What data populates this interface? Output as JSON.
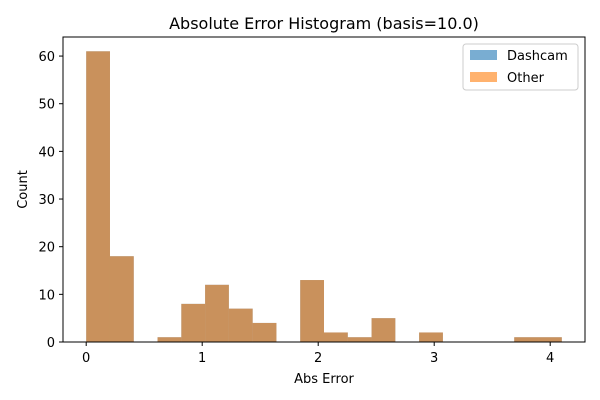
{
  "chart_data": {
    "type": "bar",
    "title": "Absolute Error Histogram (basis=10.0)",
    "xlabel": "Abs Error",
    "ylabel": "Count",
    "xlim": [
      -0.2,
      4.3
    ],
    "ylim": [
      0,
      64
    ],
    "xticks": [
      0,
      1,
      2,
      3,
      4
    ],
    "yticks": [
      0,
      10,
      20,
      30,
      40,
      50,
      60
    ],
    "grid": false,
    "legend_position": "top-right",
    "bin_edges": [
      0.0,
      0.205,
      0.41,
      0.615,
      0.82,
      1.025,
      1.23,
      1.435,
      1.64,
      1.845,
      2.05,
      2.255,
      2.46,
      2.665,
      2.87,
      3.075,
      3.28,
      3.485,
      3.69,
      3.895,
      4.1
    ],
    "series": [
      {
        "name": "Dashcam",
        "color": "#1f77b4",
        "opacity": 0.6,
        "counts": [
          61,
          18,
          0,
          1,
          8,
          12,
          7,
          4,
          0,
          13,
          2,
          1,
          5,
          0,
          2,
          0,
          0,
          0,
          1,
          1
        ]
      },
      {
        "name": "Other",
        "color": "#ff7f0e",
        "opacity": 0.6,
        "counts": [
          61,
          18,
          0,
          1,
          8,
          12,
          7,
          4,
          0,
          13,
          2,
          1,
          5,
          0,
          2,
          0,
          0,
          0,
          1,
          1
        ]
      }
    ]
  }
}
